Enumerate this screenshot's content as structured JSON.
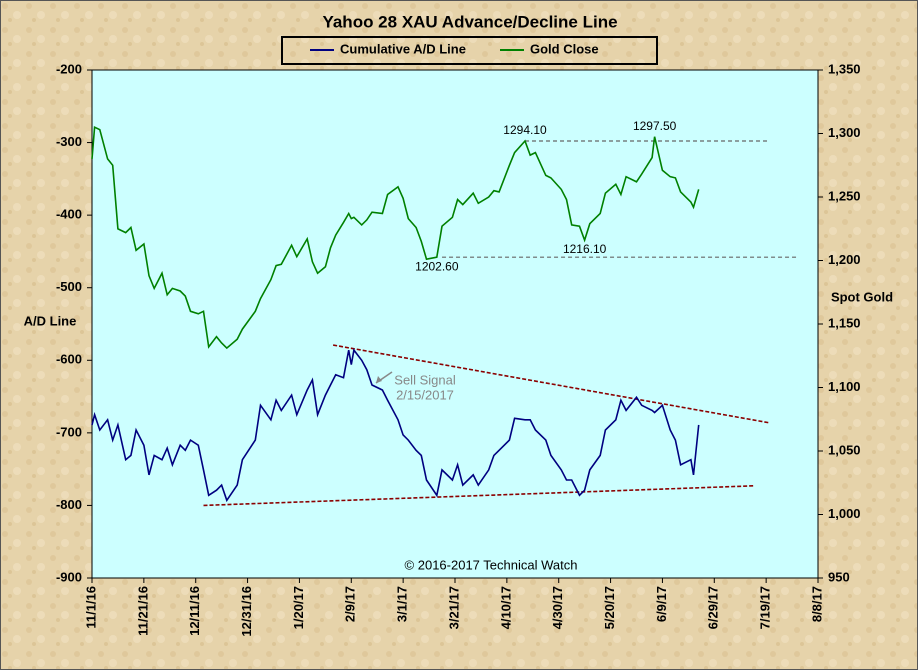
{
  "chart_data": {
    "type": "line",
    "title": "Yahoo 28 XAU Advance/Decline  Line",
    "y_label": "A/D Line",
    "y2_label": "Spot Gold",
    "copyright": "© 2016-2017  Technical Watch",
    "x": [
      "11/1/16",
      "11/2/16",
      "11/4/16",
      "11/7/16",
      "11/9/16",
      "11/11/16",
      "11/14/16",
      "11/16/16",
      "11/18/16",
      "11/21/16",
      "11/23/16",
      "11/25/16",
      "11/28/16",
      "11/30/16",
      "12/2/16",
      "12/5/16",
      "12/7/16",
      "12/9/16",
      "12/12/16",
      "12/14/16",
      "12/16/16",
      "12/19/16",
      "12/21/16",
      "12/23/16",
      "12/27/16",
      "12/29/16",
      "1/3/17",
      "1/5/17",
      "1/9/17",
      "1/11/17",
      "1/13/17",
      "1/17/17",
      "1/19/17",
      "1/23/17",
      "1/25/17",
      "1/27/17",
      "1/30/17",
      "2/1/17",
      "2/3/17",
      "2/6/17",
      "2/8/17",
      "2/9/17",
      "2/10/17",
      "2/13/17",
      "2/15/17",
      "2/17/17",
      "2/21/17",
      "2/23/17",
      "2/27/17",
      "3/1/17",
      "3/3/17",
      "3/6/17",
      "3/8/17",
      "3/10/17",
      "3/14/17",
      "3/16/17",
      "3/20/17",
      "3/22/17",
      "3/24/17",
      "3/28/17",
      "3/30/17",
      "4/3/17",
      "4/5/17",
      "4/7/17",
      "4/11/17",
      "4/13/17",
      "4/17/17",
      "4/19/17",
      "4/21/17",
      "4/25/17",
      "4/27/17",
      "5/1/17",
      "5/3/17",
      "5/5/17",
      "5/8/17",
      "5/10/17",
      "5/12/17",
      "5/16/17",
      "5/18/17",
      "5/22/17",
      "5/24/17",
      "5/26/17",
      "5/30/17",
      "6/1/17",
      "6/5/17",
      "6/6/17",
      "6/9/17",
      "6/12/17",
      "6/14/17",
      "6/16/17",
      "6/20/17",
      "6/21/17",
      "6/23/17"
    ],
    "series": [
      {
        "name": "Cumulative A/D Line",
        "color": "#000080",
        "axis": "y",
        "values": [
          -689,
          -675,
          -696,
          -682,
          -710,
          -689,
          -737,
          -731,
          -696,
          -717,
          -758,
          -731,
          -737,
          -721,
          -744,
          -717,
          -724,
          -710,
          -717,
          -751,
          -786,
          -779,
          -772,
          -793,
          -772,
          -737,
          -710,
          -662,
          -682,
          -655,
          -669,
          -648,
          -675,
          -641,
          -627,
          -675,
          -648,
          -634,
          -620,
          -624,
          -586,
          -606,
          -586,
          -600,
          -613,
          -634,
          -641,
          -655,
          -682,
          -703,
          -710,
          -724,
          -731,
          -765,
          -786,
          -751,
          -765,
          -744,
          -772,
          -758,
          -772,
          -751,
          -731,
          -724,
          -710,
          -680,
          -682,
          -682,
          -696,
          -710,
          -731,
          -751,
          -765,
          -765,
          -786,
          -779,
          -751,
          -731,
          -696,
          -682,
          -655,
          -669,
          -651,
          -662,
          -669,
          -672,
          -662,
          -696,
          -710,
          -744,
          -737,
          -758,
          -689
        ]
      },
      {
        "name": "Gold Close",
        "color": "#008000",
        "axis": "y2",
        "values": [
          1280,
          1305,
          1303,
          1280,
          1275,
          1225,
          1222,
          1226,
          1208,
          1213,
          1188,
          1178,
          1190,
          1173,
          1178,
          1176,
          1172,
          1160,
          1158,
          1160,
          1132,
          1140,
          1135,
          1131,
          1138,
          1146,
          1160,
          1170,
          1185,
          1196,
          1197,
          1212,
          1203,
          1217,
          1199,
          1190,
          1195,
          1210,
          1220,
          1230,
          1237,
          1233,
          1234,
          1228,
          1232,
          1238,
          1237,
          1252,
          1258,
          1249,
          1233,
          1226,
          1215,
          1201,
          1202.6,
          1227,
          1234,
          1248,
          1244,
          1253,
          1245,
          1250,
          1255,
          1254,
          1275,
          1285,
          1294.1,
          1283,
          1285,
          1267,
          1265,
          1256,
          1248,
          1228,
          1227,
          1216.1,
          1229,
          1237,
          1253,
          1260,
          1252,
          1266,
          1262,
          1268,
          1281,
          1297.5,
          1271,
          1266,
          1265,
          1254,
          1246,
          1242,
          1256
        ]
      }
    ],
    "xlim": [
      "11/1/16",
      "8/8/17"
    ],
    "xticks": [
      "11/1/16",
      "11/21/16",
      "12/11/16",
      "12/31/16",
      "1/20/17",
      "2/9/17",
      "3/1/17",
      "3/21/17",
      "4/10/17",
      "4/30/17",
      "5/20/17",
      "6/9/17",
      "6/29/17",
      "7/19/17",
      "8/8/17"
    ],
    "ylim": [
      -900,
      -200
    ],
    "yticks": [
      -900,
      -800,
      -700,
      -600,
      -500,
      -400,
      -300,
      -200
    ],
    "y2lim": [
      950,
      1350
    ],
    "y2ticks": [
      950,
      {
        "value": 1000,
        "label": "1,000"
      },
      {
        "value": 1050,
        "label": "1,050"
      },
      {
        "value": 1100,
        "label": "1,100"
      },
      {
        "value": 1150,
        "label": "1,150"
      },
      {
        "value": 1200,
        "label": "1,200"
      },
      {
        "value": 1250,
        "label": "1,250"
      },
      {
        "value": 1300,
        "label": "1,300"
      },
      {
        "value": 1350,
        "label": "1,350"
      }
    ],
    "annotations": [
      {
        "text": "1294.10",
        "x": "4/17/17",
        "value": 1294.1
      },
      {
        "text": "1297.50",
        "x": "6/6/17",
        "value": 1297.5
      },
      {
        "text": "1202.60",
        "x": "3/14/17",
        "value": 1202.6
      },
      {
        "text": "1216.10",
        "x": "5/10/17",
        "value": 1216.1
      }
    ],
    "reference_lines": [
      {
        "x": [
          "4/17/17",
          "7/20/17"
        ],
        "value": 1294.1,
        "color": "#666666"
      },
      {
        "x": [
          "3/16/17",
          "7/31/17"
        ],
        "value": 1202.6,
        "color": "#666666"
      }
    ],
    "trendlines": [
      {
        "x": [
          "2/2/17",
          "7/20/17"
        ],
        "values": [
          -579,
          -686
        ],
        "color": "#8b0000"
      },
      {
        "x": [
          "12/14/16",
          "7/14/17"
        ],
        "values": [
          -800,
          -773
        ],
        "color": "#8b0000"
      }
    ],
    "sell_signal": {
      "lines": [
        "Sell  Signal",
        "2/15/2017"
      ],
      "color": "#888888"
    },
    "plot_background": "#ccffff"
  }
}
